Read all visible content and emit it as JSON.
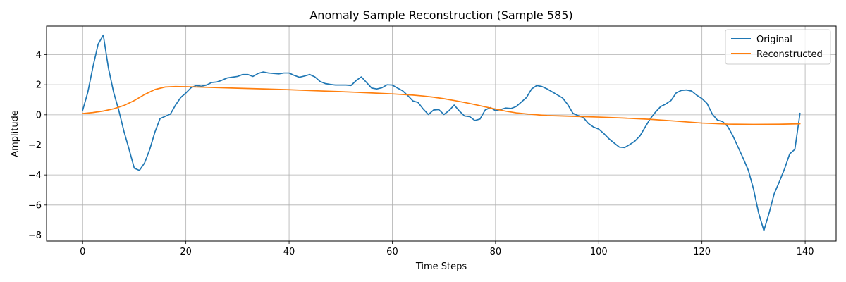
{
  "chart_data": {
    "type": "line",
    "title": "Anomaly Sample Reconstruction (Sample 585)",
    "xlabel": "Time Steps",
    "ylabel": "Amplitude",
    "xlim": [
      -7,
      146
    ],
    "ylim": [
      -8.4,
      5.9
    ],
    "xticks": [
      0,
      20,
      40,
      60,
      80,
      100,
      120,
      140
    ],
    "yticks": [
      -8,
      -6,
      -4,
      -2,
      0,
      2,
      4
    ],
    "grid": true,
    "legend_position": "top-right",
    "series": [
      {
        "name": "Original",
        "color": "#1f77b4",
        "x": [
          0,
          1,
          2,
          3,
          4,
          5,
          6,
          7,
          8,
          9,
          10,
          11,
          12,
          13,
          14,
          15,
          16,
          17,
          18,
          19,
          20,
          21,
          22,
          23,
          24,
          25,
          26,
          27,
          28,
          29,
          30,
          31,
          32,
          33,
          34,
          35,
          36,
          37,
          38,
          39,
          40,
          41,
          42,
          43,
          44,
          45,
          46,
          47,
          48,
          49,
          50,
          51,
          52,
          53,
          54,
          55,
          56,
          57,
          58,
          59,
          60,
          61,
          62,
          63,
          64,
          65,
          66,
          67,
          68,
          69,
          70,
          71,
          72,
          73,
          74,
          75,
          76,
          77,
          78,
          79,
          80,
          81,
          82,
          83,
          84,
          85,
          86,
          87,
          88,
          89,
          90,
          91,
          92,
          93,
          94,
          95,
          96,
          97,
          98,
          99,
          100,
          101,
          102,
          103,
          104,
          105,
          106,
          107,
          108,
          109,
          110,
          111,
          112,
          113,
          114,
          115,
          116,
          117,
          118,
          119,
          120,
          121,
          122,
          123,
          124,
          125,
          126,
          127,
          128,
          129,
          130,
          131,
          132,
          133,
          134,
          135,
          136,
          137,
          138,
          139
        ],
        "values": [
          0.3,
          1.5,
          3.2,
          4.7,
          5.3,
          3.1,
          1.5,
          0.3,
          -1.1,
          -2.3,
          -3.55,
          -3.7,
          -3.2,
          -2.3,
          -1.15,
          -0.25,
          -0.1,
          0.05,
          0.65,
          1.15,
          1.45,
          1.8,
          1.95,
          1.9,
          1.98,
          2.15,
          2.18,
          2.3,
          2.45,
          2.5,
          2.55,
          2.68,
          2.68,
          2.55,
          2.75,
          2.85,
          2.78,
          2.75,
          2.72,
          2.78,
          2.78,
          2.62,
          2.5,
          2.58,
          2.68,
          2.52,
          2.22,
          2.08,
          2.02,
          1.98,
          1.98,
          1.98,
          1.95,
          2.28,
          2.52,
          2.15,
          1.78,
          1.72,
          1.8,
          2.0,
          1.98,
          1.78,
          1.6,
          1.28,
          0.92,
          0.82,
          0.38,
          0.02,
          0.32,
          0.35,
          0.02,
          0.28,
          0.65,
          0.25,
          -0.08,
          -0.12,
          -0.38,
          -0.28,
          0.32,
          0.48,
          0.28,
          0.35,
          0.45,
          0.42,
          0.55,
          0.85,
          1.15,
          1.72,
          1.95,
          1.88,
          1.72,
          1.52,
          1.32,
          1.12,
          0.68,
          0.1,
          -0.05,
          -0.18,
          -0.58,
          -0.82,
          -0.95,
          -1.25,
          -1.6,
          -1.88,
          -2.15,
          -2.18,
          -1.98,
          -1.75,
          -1.4,
          -0.82,
          -0.25,
          0.18,
          0.55,
          0.72,
          0.95,
          1.45,
          1.62,
          1.65,
          1.58,
          1.3,
          1.08,
          0.75,
          0.05,
          -0.35,
          -0.45,
          -0.78,
          -1.4,
          -2.15,
          -2.9,
          -3.7,
          -4.95,
          -6.55,
          -7.7,
          -6.55,
          -5.25,
          -4.45,
          -3.6,
          -2.6,
          -2.3,
          0.1
        ]
      },
      {
        "name": "Reconstructed",
        "color": "#ff7f0e",
        "x": [
          0,
          2,
          4,
          6,
          8,
          10,
          12,
          14,
          16,
          18,
          20,
          25,
          30,
          35,
          40,
          45,
          50,
          55,
          60,
          62,
          64,
          66,
          68,
          70,
          72,
          74,
          76,
          78,
          80,
          82,
          84,
          86,
          88,
          90,
          95,
          100,
          105,
          110,
          115,
          120,
          125,
          130,
          135,
          139
        ],
        "values": [
          0.08,
          0.15,
          0.25,
          0.4,
          0.62,
          0.95,
          1.35,
          1.68,
          1.85,
          1.88,
          1.87,
          1.82,
          1.77,
          1.72,
          1.67,
          1.6,
          1.54,
          1.47,
          1.39,
          1.35,
          1.31,
          1.25,
          1.17,
          1.07,
          0.95,
          0.82,
          0.68,
          0.53,
          0.38,
          0.24,
          0.13,
          0.06,
          0.0,
          -0.05,
          -0.1,
          -0.15,
          -0.22,
          -0.3,
          -0.42,
          -0.55,
          -0.62,
          -0.64,
          -0.63,
          -0.6
        ]
      }
    ]
  }
}
